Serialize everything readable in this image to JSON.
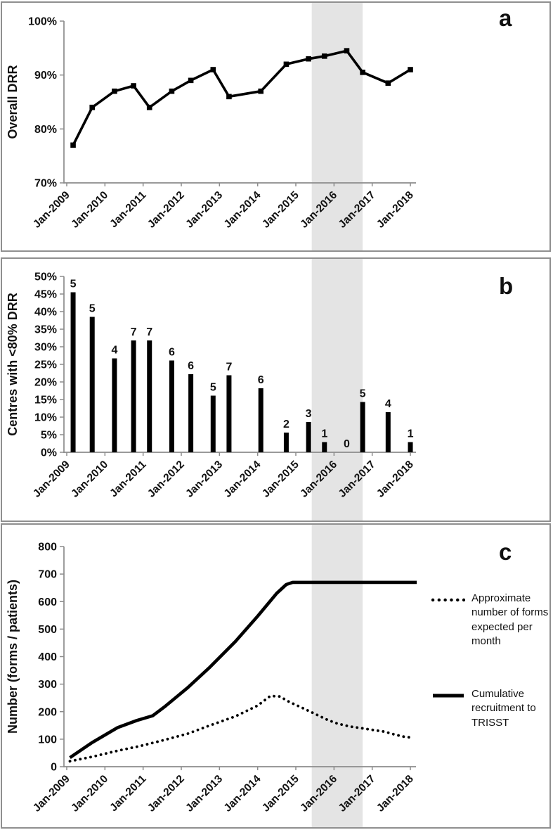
{
  "figure": {
    "colors": {
      "series": "#000000",
      "band": "#e4e4e4",
      "axis": "#8c8c8c",
      "panel_border": "#8f8f8f",
      "text": "#111111"
    }
  },
  "chart_data": [
    {
      "id": "a",
      "type": "line",
      "panel_label": "a",
      "ylabel": "Overall DRR",
      "ylim": [
        70,
        100
      ],
      "yticks": [
        [
          100,
          "100%"
        ],
        [
          90,
          "90%"
        ],
        [
          80,
          "80%"
        ],
        [
          70,
          "70%"
        ]
      ],
      "x_months_range": [
        0,
        108
      ],
      "xticks_months": [
        0,
        12,
        24,
        36,
        48,
        60,
        72,
        84,
        96,
        108
      ],
      "xtick_labels": [
        "Jan-2009",
        "Jan-2010",
        "Jan-2011",
        "Jan-2012",
        "Jan-2013",
        "Jan-2014",
        "Jan-2015",
        "Jan-2016",
        "Jan-2017",
        "Jan-2018"
      ],
      "highlight_band_months": [
        77,
        93
      ],
      "grid": false,
      "series": [
        {
          "name": "Overall DRR",
          "marker": "square",
          "style": "solid",
          "points": [
            [
              2,
              77
            ],
            [
              8,
              84
            ],
            [
              15,
              87
            ],
            [
              21,
              88
            ],
            [
              26,
              84
            ],
            [
              33,
              87
            ],
            [
              39,
              89
            ],
            [
              46,
              91
            ],
            [
              51,
              86
            ],
            [
              61,
              87
            ],
            [
              69,
              92
            ],
            [
              76,
              93
            ],
            [
              81,
              93.5
            ],
            [
              88,
              94.5
            ],
            [
              93,
              90.5
            ],
            [
              101,
              88.5
            ],
            [
              108,
              91
            ]
          ]
        }
      ]
    },
    {
      "id": "b",
      "type": "bar",
      "panel_label": "b",
      "ylabel": "Centres with <80% DRR",
      "ylim": [
        0,
        50
      ],
      "yticks": [
        [
          50,
          "50%"
        ],
        [
          45,
          "45%"
        ],
        [
          40,
          "40%"
        ],
        [
          35,
          "35%"
        ],
        [
          30,
          "30%"
        ],
        [
          25,
          "25%"
        ],
        [
          20,
          "20%"
        ],
        [
          15,
          "15%"
        ],
        [
          10,
          "10%"
        ],
        [
          5,
          "5%"
        ],
        [
          0,
          "0%"
        ]
      ],
      "x_months_range": [
        0,
        108
      ],
      "xticks_months": [
        0,
        12,
        24,
        36,
        48,
        60,
        72,
        84,
        96,
        108
      ],
      "xtick_labels": [
        "Jan-2009",
        "Jan-2010",
        "Jan-2011",
        "Jan-2012",
        "Jan-2013",
        "Jan-2014",
        "Jan-2015",
        "Jan-2016",
        "Jan-2017",
        "Jan-2018"
      ],
      "highlight_band_months": [
        77,
        93
      ],
      "grid": false,
      "bars": {
        "months": [
          2,
          8,
          15,
          21,
          26,
          33,
          39,
          46,
          51,
          61,
          69,
          76,
          81,
          88,
          93,
          101,
          108
        ],
        "values": [
          45.5,
          38.5,
          26.7,
          31.8,
          31.8,
          26.1,
          22.2,
          16.1,
          21.9,
          18.2,
          5.6,
          8.6,
          2.9,
          0,
          14.3,
          11.4,
          2.9
        ],
        "labels": [
          "5",
          "5",
          "4",
          "7",
          "7",
          "6",
          "6",
          "5",
          "7",
          "6",
          "2",
          "3",
          "1",
          "0",
          "5",
          "4",
          "1"
        ]
      }
    },
    {
      "id": "c",
      "type": "line",
      "panel_label": "c",
      "ylabel": "Number (forms / patients)",
      "ylim": [
        0,
        800
      ],
      "yticks": [
        [
          800,
          "800"
        ],
        [
          700,
          "700"
        ],
        [
          600,
          "600"
        ],
        [
          500,
          "500"
        ],
        [
          400,
          "400"
        ],
        [
          300,
          "300"
        ],
        [
          200,
          "200"
        ],
        [
          100,
          "100"
        ],
        [
          0,
          "0"
        ]
      ],
      "x_months_range": [
        0,
        108
      ],
      "xticks_months": [
        0,
        12,
        24,
        36,
        48,
        60,
        72,
        84,
        96,
        108
      ],
      "xtick_labels": [
        "Jan-2009",
        "Jan-2010",
        "Jan-2011",
        "Jan-2012",
        "Jan-2013",
        "Jan-2014",
        "Jan-2015",
        "Jan-2016",
        "Jan-2017",
        "Jan-2018"
      ],
      "highlight_band_months": [
        77,
        93
      ],
      "grid": false,
      "series": [
        {
          "name": "Approximate number of forms expected per month",
          "style": "dotted",
          "points": [
            [
              1,
              20
            ],
            [
              8,
              36
            ],
            [
              16,
              58
            ],
            [
              23,
              75
            ],
            [
              30,
              95
            ],
            [
              38,
              120
            ],
            [
              45,
              150
            ],
            [
              53,
              183
            ],
            [
              60,
              222
            ],
            [
              64,
              257
            ],
            [
              67,
              255
            ],
            [
              70,
              235
            ],
            [
              74,
              214
            ],
            [
              78,
              192
            ],
            [
              82,
              170
            ],
            [
              85,
              157
            ],
            [
              89,
              146
            ],
            [
              92,
              141
            ],
            [
              96,
              134
            ],
            [
              100,
              127
            ],
            [
              103,
              117
            ],
            [
              106,
              109
            ],
            [
              109,
              105
            ]
          ]
        },
        {
          "name": "Cumulative recruitment to TRISST",
          "style": "solid",
          "points": [
            [
              1,
              33
            ],
            [
              8,
              88
            ],
            [
              16,
              142
            ],
            [
              22,
              168
            ],
            [
              27,
              185
            ],
            [
              31,
              220
            ],
            [
              38,
              287
            ],
            [
              45,
              362
            ],
            [
              53,
              455
            ],
            [
              60,
              547
            ],
            [
              66,
              630
            ],
            [
              69,
              662
            ],
            [
              71,
              670
            ],
            [
              110,
              670
            ]
          ]
        }
      ],
      "legend": {
        "items": [
          {
            "style": "dotted",
            "label": "Approximate number of forms expected per month"
          },
          {
            "style": "solid",
            "label": "Cumulative recruitment to TRISST"
          }
        ]
      }
    }
  ]
}
